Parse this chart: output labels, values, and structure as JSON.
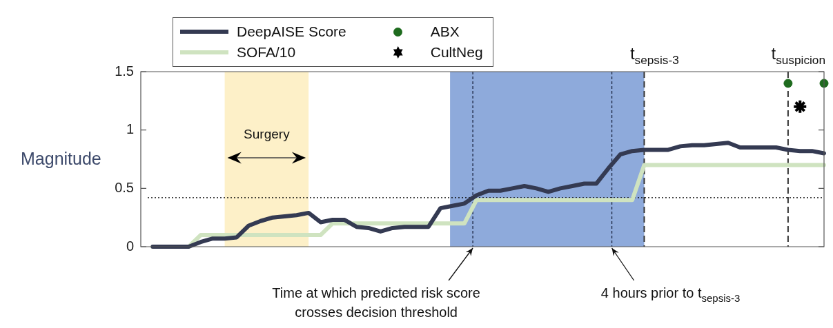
{
  "chart_data": {
    "type": "line",
    "ylabel": "Magnitude",
    "categories": [
      null,
      null,
      null,
      null,
      null,
      null,
      null,
      null,
      null,
      null,
      null,
      null,
      null,
      null,
      null,
      null,
      null,
      null,
      null,
      null,
      null,
      null,
      null,
      null,
      null,
      null,
      null,
      null,
      null,
      null,
      null,
      null,
      null,
      null,
      null,
      null,
      null,
      null,
      null,
      null,
      null,
      null,
      null,
      null,
      null,
      null,
      null,
      null,
      null,
      null,
      null,
      null,
      null,
      null,
      null,
      null,
      null,
      null
    ],
    "ylim": [
      0,
      1.5
    ],
    "yticks": [
      0,
      0.5,
      1,
      1.5
    ],
    "grid": false,
    "legend": "top left",
    "series": [
      {
        "name": "DeepAISE Score",
        "color": "#343a52",
        "values": [
          null,
          0,
          0,
          0,
          0,
          0.04,
          0.07,
          0.07,
          0.08,
          0.18,
          0.22,
          0.25,
          0.26,
          0.27,
          0.29,
          0.21,
          0.23,
          0.23,
          0.17,
          0.16,
          0.13,
          0.16,
          0.17,
          0.17,
          0.17,
          0.33,
          0.35,
          0.37,
          0.44,
          0.48,
          0.48,
          0.5,
          0.52,
          0.5,
          0.47,
          0.5,
          0.52,
          0.54,
          0.54,
          0.67,
          0.79,
          0.82,
          0.83,
          0.83,
          0.83,
          0.86,
          0.87,
          0.87,
          0.88,
          0.89,
          0.85,
          0.85,
          0.85,
          0.85,
          0.83,
          0.82,
          0.82,
          0.8
        ]
      },
      {
        "name": "SOFA/10",
        "color": "#cfe3c0",
        "values": [
          null,
          0,
          0,
          0,
          0,
          0.1,
          0.1,
          0.1,
          0.1,
          0.1,
          0.1,
          0.1,
          0.1,
          0.1,
          0.1,
          0.1,
          0.2,
          0.2,
          0.2,
          0.2,
          0.2,
          0.2,
          0.2,
          0.2,
          0.2,
          0.2,
          0.2,
          0.2,
          0.4,
          0.4,
          0.4,
          0.4,
          0.4,
          0.4,
          0.4,
          0.4,
          0.4,
          0.4,
          0.4,
          0.4,
          0.4,
          0.4,
          0.7,
          0.7,
          0.7,
          0.7,
          0.7,
          0.7,
          0.7,
          0.7,
          0.7,
          0.7,
          0.7,
          0.7,
          0.7,
          0.7,
          0.7,
          0.7
        ]
      },
      {
        "name": "ABX",
        "type": "scatter",
        "marker": "circle",
        "color": "#1e6b1e",
        "values": [
          null,
          null,
          null,
          null,
          null,
          null,
          null,
          null,
          null,
          null,
          null,
          null,
          null,
          null,
          null,
          null,
          null,
          null,
          null,
          null,
          null,
          null,
          null,
          null,
          null,
          null,
          null,
          null,
          null,
          null,
          null,
          null,
          null,
          null,
          null,
          null,
          null,
          null,
          null,
          null,
          null,
          null,
          null,
          null,
          null,
          null,
          null,
          null,
          null,
          null,
          null,
          null,
          null,
          null,
          1.4,
          null,
          null,
          1.4
        ]
      },
      {
        "name": "CultNeg",
        "type": "scatter",
        "color": "#000000",
        "values": [
          null,
          null,
          null,
          null,
          null,
          null,
          null,
          null,
          null,
          null,
          null,
          null,
          null,
          null,
          null,
          null,
          null,
          null,
          null,
          null,
          null,
          null,
          null,
          null,
          null,
          null,
          null,
          null,
          null,
          null,
          null,
          null,
          null,
          null,
          null,
          null,
          null,
          null,
          null,
          null,
          null,
          null,
          null,
          null,
          null,
          null,
          null,
          null,
          null,
          null,
          null,
          null,
          null,
          null,
          null,
          1.2,
          null,
          null
        ]
      }
    ],
    "ref_lines": [
      {
        "axis": "y",
        "value": 0.42,
        "line_style": "dotted",
        "color": "#000000"
      }
    ],
    "annotations": [
      "Surgery",
      "t$_{sepsis-3}$",
      "t$_{suspicion}$",
      "Time at which predicted risk score crosses decision threshold",
      "4 hours prior to t$_{sepsis-3}$"
    ]
  }
}
